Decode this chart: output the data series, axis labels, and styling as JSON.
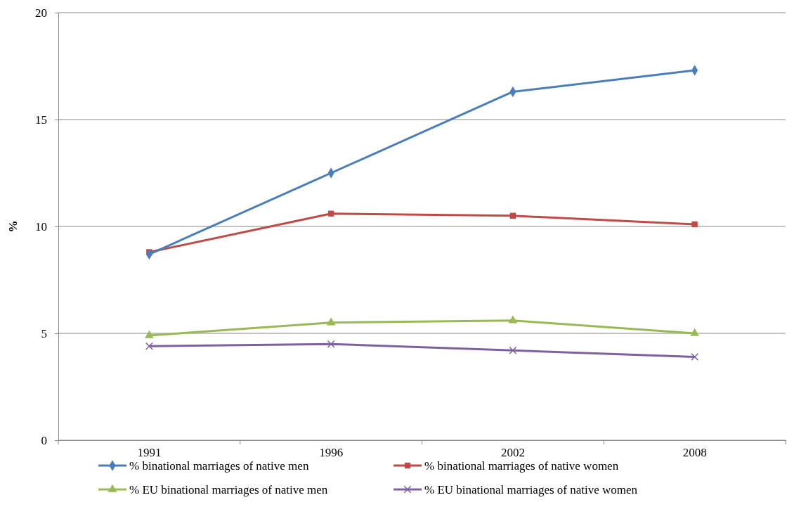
{
  "chart_data": {
    "type": "line",
    "ylabel": "%",
    "categories": [
      "1991",
      "1996",
      "2002",
      "2008"
    ],
    "ylim": [
      0,
      20
    ],
    "yticks": [
      0,
      5,
      10,
      15,
      20
    ],
    "grid": "y",
    "legend": "bottom",
    "series": [
      {
        "name": "% binational marriages of native men",
        "color": "#4a7ebb",
        "marker": "diamond",
        "values": [
          8.7,
          12.5,
          16.3,
          17.3
        ]
      },
      {
        "name": "% binational marriages of native women",
        "color": "#be4b48",
        "marker": "square",
        "values": [
          8.8,
          10.6,
          10.5,
          10.1
        ]
      },
      {
        "name": "% EU binational marriages of native men",
        "color": "#98b954",
        "marker": "triangle",
        "values": [
          4.9,
          5.5,
          5.6,
          5.0
        ]
      },
      {
        "name": "% EU binational marriages of native women",
        "color": "#7d60a0",
        "marker": "cross",
        "values": [
          4.4,
          4.5,
          4.2,
          3.9
        ]
      }
    ]
  }
}
